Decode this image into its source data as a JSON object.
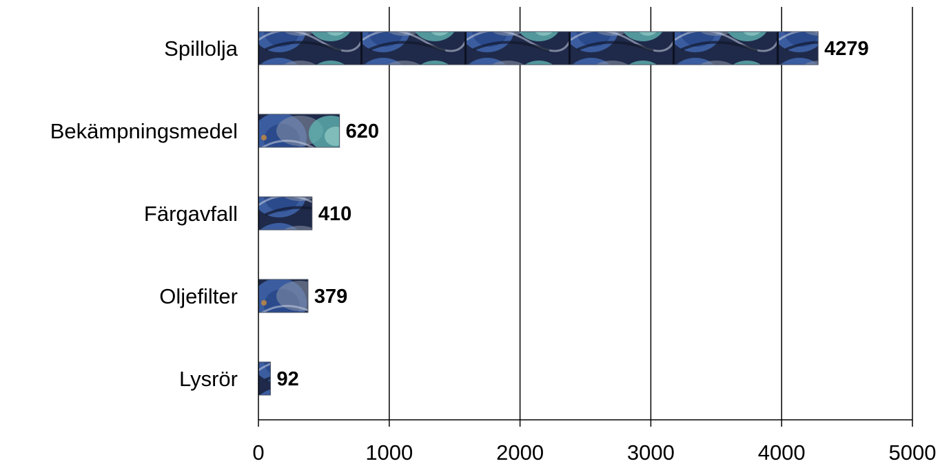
{
  "chart_data": {
    "type": "bar",
    "orientation": "horizontal",
    "categories": [
      "Spillolja",
      "Bekämpningsmedel",
      "Färgavfall",
      "Oljefilter",
      "Lysrör"
    ],
    "values": [
      4279,
      620,
      410,
      379,
      92
    ],
    "data_labels": [
      "4279",
      "620",
      "410",
      "379",
      "92"
    ],
    "xlim": [
      0,
      5000
    ],
    "xticks": [
      0,
      1000,
      2000,
      3000,
      4000,
      5000
    ],
    "xtick_labels": [
      "0",
      "1000",
      "2000",
      "3000",
      "4000",
      "5000"
    ],
    "grid": true,
    "bar_fill": "blue-teal textured image pattern",
    "colors": {
      "bar_dark": "#1f2a4a",
      "bar_blue": "#3b5da0",
      "bar_teal": "#5fb3b0",
      "bar_gray": "#8a93a6",
      "axis": "#000000",
      "background": "#ffffff"
    }
  }
}
